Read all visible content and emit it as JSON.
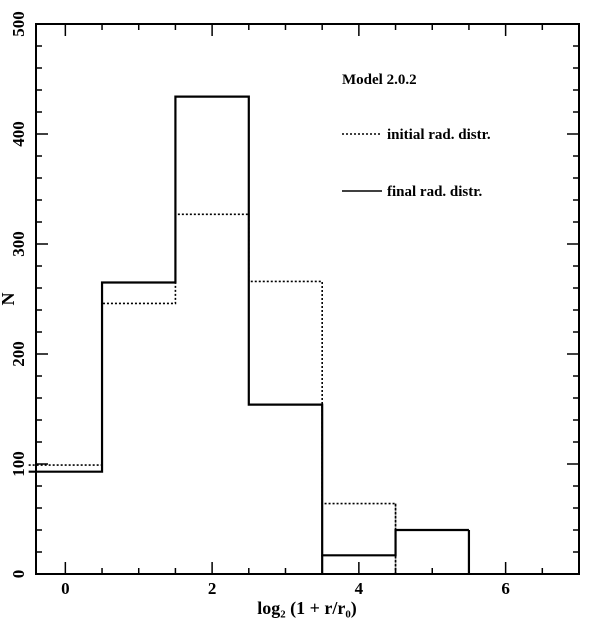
{
  "chart_data": {
    "type": "histogram",
    "title": "Model 2.0.2",
    "xlabel": "log₂ (1 + r/r₀)",
    "ylabel": "N",
    "xlim": [
      -0.4,
      7
    ],
    "ylim": [
      0,
      500
    ],
    "x_ticks": [
      0,
      2,
      4,
      6
    ],
    "y_ticks": [
      0,
      100,
      200,
      300,
      400,
      500
    ],
    "bin_edges": [
      -0.5,
      0.5,
      1.5,
      2.5,
      3.5,
      4.5,
      5.5
    ],
    "series": [
      {
        "name": "initial rad. distr.",
        "style": "dotted",
        "values": [
          99,
          246,
          327,
          266,
          64,
          0
        ]
      },
      {
        "name": "final rad. distr.",
        "style": "solid",
        "values": [
          93,
          265,
          434,
          154,
          17,
          40
        ]
      }
    ],
    "legend_position": "top-right",
    "grid": false
  }
}
